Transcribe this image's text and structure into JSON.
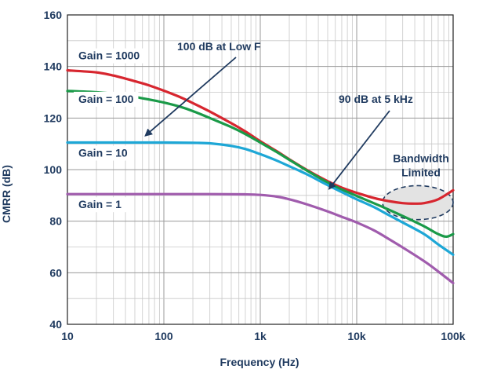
{
  "chart_data": {
    "type": "line",
    "xlabel": "Frequency (Hz)",
    "ylabel": "CMRR (dB)",
    "x_scale": "log",
    "xlim": [
      10,
      100000
    ],
    "ylim": [
      40,
      160
    ],
    "grid": true,
    "x_ticks": [
      {
        "value": 10,
        "label": "10"
      },
      {
        "value": 100,
        "label": "100"
      },
      {
        "value": 1000,
        "label": "1k"
      },
      {
        "value": 10000,
        "label": "10k"
      },
      {
        "value": 100000,
        "label": "100k"
      }
    ],
    "y_ticks": [
      40,
      60,
      80,
      100,
      120,
      140,
      160
    ],
    "series": [
      {
        "name": "Gain = 1000",
        "color": "#d7262f",
        "points": [
          [
            10,
            138.5
          ],
          [
            20,
            137.7
          ],
          [
            30,
            136.5
          ],
          [
            50,
            134.3
          ],
          [
            70,
            132.7
          ],
          [
            100,
            130.6
          ],
          [
            150,
            128.0
          ],
          [
            200,
            125.8
          ],
          [
            300,
            122.5
          ],
          [
            500,
            118.0
          ],
          [
            700,
            114.8
          ],
          [
            1000,
            111.0
          ],
          [
            1500,
            107.0
          ],
          [
            2000,
            104.0
          ],
          [
            3000,
            100.0
          ],
          [
            5000,
            95.5
          ],
          [
            7000,
            93.0
          ],
          [
            10000,
            91.0
          ],
          [
            15000,
            89.0
          ],
          [
            20000,
            88.0
          ],
          [
            30000,
            87.0
          ],
          [
            40000,
            86.8
          ],
          [
            50000,
            87.0
          ],
          [
            70000,
            88.5
          ],
          [
            100000,
            92.0
          ]
        ]
      },
      {
        "name": "Gain = 100",
        "color": "#1a9a48",
        "points": [
          [
            10,
            130.5
          ],
          [
            20,
            130.0
          ],
          [
            30,
            129.4
          ],
          [
            50,
            128.2
          ],
          [
            70,
            127.2
          ],
          [
            100,
            126.0
          ],
          [
            150,
            124.3
          ],
          [
            200,
            122.7
          ],
          [
            300,
            120.0
          ],
          [
            500,
            116.5
          ],
          [
            700,
            113.8
          ],
          [
            1000,
            110.5
          ],
          [
            1500,
            106.7
          ],
          [
            2000,
            103.8
          ],
          [
            3000,
            99.8
          ],
          [
            5000,
            95.0
          ],
          [
            7000,
            92.3
          ],
          [
            10000,
            89.8
          ],
          [
            15000,
            87.0
          ],
          [
            20000,
            85.0
          ],
          [
            30000,
            82.0
          ],
          [
            50000,
            78.0
          ],
          [
            70000,
            75.0
          ],
          [
            85000,
            74.0
          ],
          [
            100000,
            75.0
          ]
        ]
      },
      {
        "name": "Gain = 10",
        "color": "#1ea7d6",
        "points": [
          [
            10,
            110.5
          ],
          [
            30,
            110.5
          ],
          [
            100,
            110.5
          ],
          [
            200,
            110.4
          ],
          [
            300,
            110.2
          ],
          [
            500,
            109.2
          ],
          [
            700,
            108.0
          ],
          [
            1000,
            106.0
          ],
          [
            1500,
            103.4
          ],
          [
            2000,
            101.3
          ],
          [
            3000,
            98.3
          ],
          [
            5000,
            94.0
          ],
          [
            7000,
            91.3
          ],
          [
            10000,
            88.5
          ],
          [
            15000,
            85.5
          ],
          [
            20000,
            83.0
          ],
          [
            30000,
            79.5
          ],
          [
            50000,
            75.0
          ],
          [
            70000,
            71.0
          ],
          [
            100000,
            67.0
          ]
        ]
      },
      {
        "name": "Gain = 1",
        "color": "#a05cad",
        "points": [
          [
            10,
            90.5
          ],
          [
            30,
            90.5
          ],
          [
            100,
            90.5
          ],
          [
            300,
            90.5
          ],
          [
            700,
            90.4
          ],
          [
            1000,
            90.2
          ],
          [
            1500,
            89.5
          ],
          [
            2000,
            88.5
          ],
          [
            3000,
            86.6
          ],
          [
            5000,
            83.8
          ],
          [
            7000,
            81.7
          ],
          [
            10000,
            79.5
          ],
          [
            15000,
            76.5
          ],
          [
            20000,
            73.8
          ],
          [
            30000,
            69.8
          ],
          [
            50000,
            64.5
          ],
          [
            70000,
            60.5
          ],
          [
            100000,
            56.0
          ]
        ]
      }
    ],
    "annotations": [
      {
        "text": "100 dB at Low F",
        "points_to": {
          "x": 60,
          "y": 112
        }
      },
      {
        "text": "90 dB at 5 kHz",
        "points_to": {
          "x": 5000,
          "y": 92
        }
      },
      {
        "text_lines": [
          "Bandwidth",
          "Limited"
        ],
        "region": {
          "x": [
            20000,
            100000
          ],
          "y": [
            80,
            95
          ]
        }
      }
    ]
  }
}
